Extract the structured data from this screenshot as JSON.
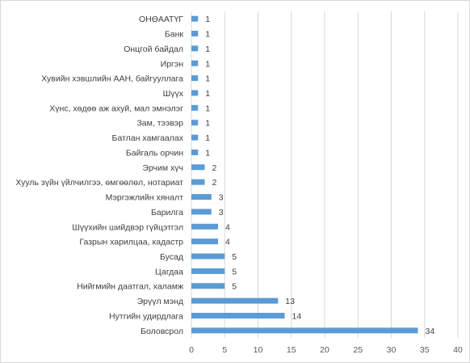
{
  "chart_data": {
    "type": "bar",
    "orientation": "horizontal",
    "categories": [
      "ОНӨААТҮГ",
      "Банк",
      "Онцгой байдал",
      "Иргэн",
      "Хувийн хэвшлийн ААН, байгууллага",
      "Шүүх",
      "Хүнс, хөдөө аж ахуй, мал эмнэлэг",
      "Зам, тээвэр",
      "Батлан хамгаалах",
      "Байгаль орчин",
      "Эрчим хүч",
      "Хууль зүйн үйлчилгээ, өмгөөлөл, нотариат",
      "Мэргэжлийн хяналт",
      "Барилга",
      "Шүүхийн шийдвэр гүйцэтгэл",
      "Газрын харилцаа, кадастр",
      "Бусад",
      "Цагдаа",
      "Нийгмийн даатгал, халамж",
      "Эрүүл мэнд",
      "Нутгийн удирдлага",
      "Боловсрол"
    ],
    "values": [
      1,
      1,
      1,
      1,
      1,
      1,
      1,
      1,
      1,
      1,
      2,
      2,
      3,
      3,
      4,
      4,
      5,
      5,
      5,
      13,
      14,
      34
    ],
    "xlim": [
      0,
      40
    ],
    "xticks": [
      "0",
      "5",
      "10",
      "15",
      "20",
      "25",
      "30",
      "35",
      "40"
    ],
    "grid": true,
    "legend": "none",
    "bar_color": "#5b9bd5",
    "grid_color": "#d9d9d9",
    "title": "",
    "xlabel": "",
    "ylabel": ""
  }
}
